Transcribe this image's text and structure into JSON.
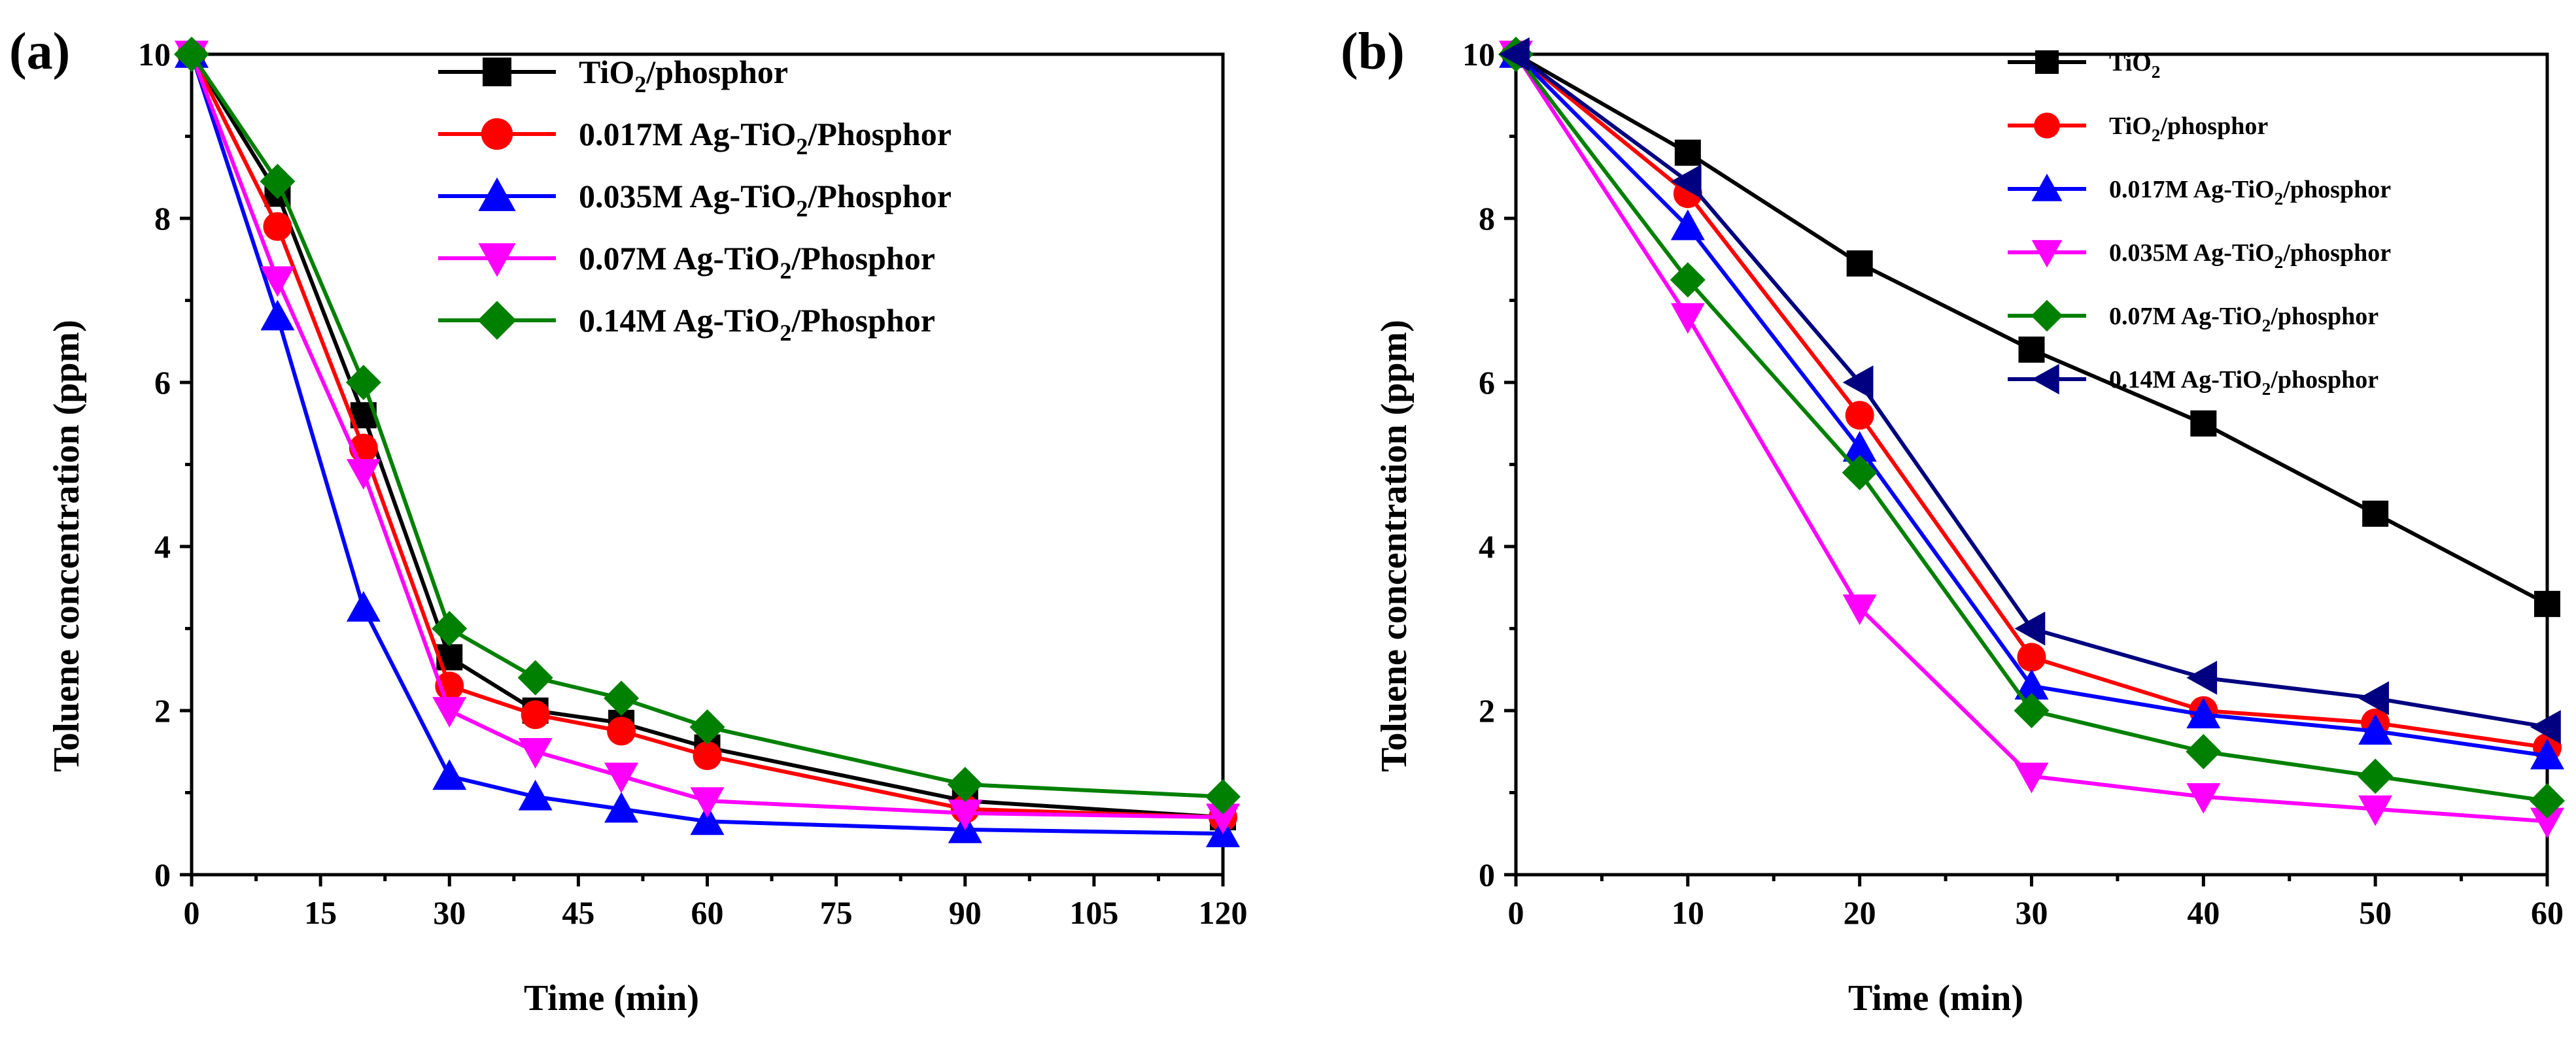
{
  "colors": {
    "black": "#000000",
    "red": "#ff0000",
    "blue": "#0000ff",
    "magenta": "#ff00ff",
    "green": "#008000",
    "navy": "#000080"
  },
  "chart_data": [
    {
      "panel_label": "(a)",
      "type": "line",
      "xlabel": "Time (min)",
      "ylabel": "Toluene concentration (ppm)",
      "xlim": [
        0,
        120
      ],
      "ylim": [
        0,
        10
      ],
      "xticks": [
        "0",
        "15",
        "30",
        "45",
        "60",
        "75",
        "90",
        "105",
        "120"
      ],
      "yticks": [
        "0",
        "2",
        "4",
        "6",
        "8",
        "10"
      ],
      "legend_position": "top-right",
      "x": [
        0,
        10,
        20,
        30,
        40,
        50,
        60,
        90,
        120
      ],
      "series": [
        {
          "name": "TiO2/phosphor",
          "legend": [
            "TiO",
            "2",
            "/phosphor"
          ],
          "color": "black",
          "marker": "square",
          "values": [
            10,
            8.3,
            5.6,
            2.65,
            2.0,
            1.85,
            1.55,
            0.9,
            0.7
          ]
        },
        {
          "name": "0.017M Ag-TiO2/Phosphor",
          "legend": [
            "0.017M Ag-TiO",
            "2",
            "/Phosphor"
          ],
          "color": "red",
          "marker": "circle",
          "values": [
            10,
            7.9,
            5.2,
            2.3,
            1.95,
            1.75,
            1.45,
            0.8,
            0.7
          ]
        },
        {
          "name": "0.035M Ag-TiO2/Phosphor",
          "legend": [
            "0.035M Ag-TiO",
            "2",
            "/Phosphor"
          ],
          "color": "blue",
          "marker": "triangle-up",
          "values": [
            10,
            6.8,
            3.25,
            1.2,
            0.95,
            0.8,
            0.65,
            0.55,
            0.5
          ]
        },
        {
          "name": "0.07M Ag-TiO2/Phosphor",
          "legend": [
            "0.07M Ag-TiO",
            "2",
            "/Phosphor"
          ],
          "color": "magenta",
          "marker": "triangle-down",
          "values": [
            10,
            7.25,
            4.9,
            2.0,
            1.5,
            1.2,
            0.9,
            0.75,
            0.7
          ]
        },
        {
          "name": "0.14M Ag-TiO2/Phosphor",
          "legend": [
            "0.14M Ag-TiO",
            "2",
            "/Phosphor"
          ],
          "color": "green",
          "marker": "diamond",
          "values": [
            10,
            8.45,
            6.0,
            3.0,
            2.4,
            2.15,
            1.8,
            1.1,
            0.95
          ]
        }
      ]
    },
    {
      "panel_label": "(b)",
      "type": "line",
      "xlabel": "Time (min)",
      "ylabel": "Toluene concentration (ppm)",
      "xlim": [
        0,
        60
      ],
      "ylim": [
        0,
        10
      ],
      "xticks": [
        "0",
        "10",
        "20",
        "30",
        "40",
        "50",
        "60"
      ],
      "yticks": [
        "0",
        "2",
        "4",
        "6",
        "8",
        "10"
      ],
      "legend_position": "top-right",
      "x": [
        0,
        10,
        20,
        30,
        40,
        50,
        60
      ],
      "series": [
        {
          "name": "TiO2",
          "legend": [
            "TiO",
            "2",
            ""
          ],
          "color": "black",
          "marker": "square",
          "values": [
            10,
            8.8,
            7.45,
            6.4,
            5.5,
            4.4,
            3.3
          ]
        },
        {
          "name": "TiO2/phosphor",
          "legend": [
            "TiO",
            "2",
            "/phosphor"
          ],
          "color": "red",
          "marker": "circle",
          "values": [
            10,
            8.3,
            5.6,
            2.65,
            2.0,
            1.85,
            1.55
          ]
        },
        {
          "name": "0.017M Ag-TiO2/phosphor",
          "legend": [
            "0.017M Ag-TiO",
            "2",
            "/phosphor"
          ],
          "color": "blue",
          "marker": "triangle-up",
          "values": [
            10,
            7.9,
            5.2,
            2.3,
            1.95,
            1.75,
            1.45
          ]
        },
        {
          "name": "0.035M Ag-TiO2/phosphor",
          "legend": [
            "0.035M Ag-TiO",
            "2",
            "/phosphor"
          ],
          "color": "magenta",
          "marker": "triangle-down",
          "values": [
            10,
            6.8,
            3.25,
            1.2,
            0.95,
            0.8,
            0.65
          ]
        },
        {
          "name": "0.07M Ag-TiO2/phosphor",
          "legend": [
            "0.07M Ag-TiO",
            "2",
            "/phosphor"
          ],
          "color": "green",
          "marker": "diamond",
          "values": [
            10,
            7.25,
            4.9,
            2.0,
            1.5,
            1.2,
            0.9
          ]
        },
        {
          "name": "0.14M Ag-TiO2/phosphor",
          "legend": [
            "0.14M Ag-TiO",
            "2",
            "/phosphor"
          ],
          "color": "navy",
          "marker": "triangle-left",
          "values": [
            10,
            8.45,
            6.0,
            3.0,
            2.4,
            2.15,
            1.8
          ]
        }
      ]
    }
  ]
}
